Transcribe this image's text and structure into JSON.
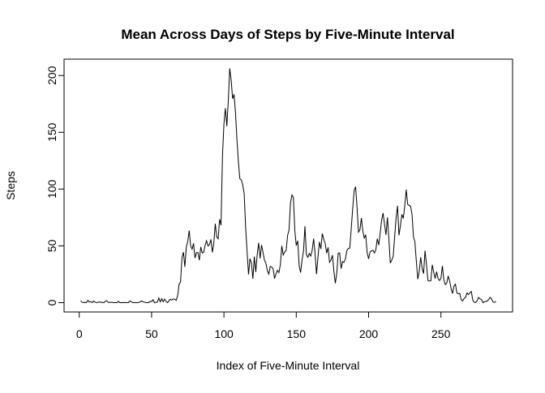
{
  "chart_data": {
    "type": "line",
    "title": "Mean Across Days of Steps by Five-Minute Interval",
    "x_label": "Index of Five-Minute Interval",
    "y_label": "Steps",
    "x": [
      1,
      2,
      3,
      4,
      5,
      6,
      7,
      8,
      9,
      10,
      11,
      12,
      13,
      14,
      15,
      16,
      17,
      18,
      19,
      20,
      21,
      22,
      23,
      24,
      25,
      26,
      27,
      28,
      29,
      30,
      31,
      32,
      33,
      34,
      35,
      36,
      37,
      38,
      39,
      40,
      41,
      42,
      43,
      44,
      45,
      46,
      47,
      48,
      49,
      50,
      51,
      52,
      53,
      54,
      55,
      56,
      57,
      58,
      59,
      60,
      61,
      62,
      63,
      64,
      65,
      66,
      67,
      68,
      69,
      70,
      71,
      72,
      73,
      74,
      75,
      76,
      77,
      78,
      79,
      80,
      81,
      82,
      83,
      84,
      85,
      86,
      87,
      88,
      89,
      90,
      91,
      92,
      93,
      94,
      95,
      96,
      97,
      98,
      99,
      100,
      101,
      102,
      103,
      104,
      105,
      106,
      107,
      108,
      109,
      110,
      111,
      112,
      113,
      114,
      115,
      116,
      117,
      118,
      119,
      120,
      121,
      122,
      123,
      124,
      125,
      126,
      127,
      128,
      129,
      130,
      131,
      132,
      133,
      134,
      135,
      136,
      137,
      138,
      139,
      140,
      141,
      142,
      143,
      144,
      145,
      146,
      147,
      148,
      149,
      150,
      151,
      152,
      153,
      154,
      155,
      156,
      157,
      158,
      159,
      160,
      161,
      162,
      163,
      164,
      165,
      166,
      167,
      168,
      169,
      170,
      171,
      172,
      173,
      174,
      175,
      176,
      177,
      178,
      179,
      180,
      181,
      182,
      183,
      184,
      185,
      186,
      187,
      188,
      189,
      190,
      191,
      192,
      193,
      194,
      195,
      196,
      197,
      198,
      199,
      200,
      201,
      202,
      203,
      204,
      205,
      206,
      207,
      208,
      209,
      210,
      211,
      212,
      213,
      214,
      215,
      216,
      217,
      218,
      219,
      220,
      221,
      222,
      223,
      224,
      225,
      226,
      227,
      228,
      229,
      230,
      231,
      232,
      233,
      234,
      235,
      236,
      237,
      238,
      239,
      240,
      241,
      242,
      243,
      244,
      245,
      246,
      247,
      248,
      249,
      250,
      251,
      252,
      253,
      254,
      255,
      256,
      257,
      258,
      259,
      260,
      261,
      262,
      263,
      264,
      265,
      266,
      267,
      268,
      269,
      270,
      271,
      272,
      273,
      274,
      275,
      276,
      277,
      278,
      279,
      280,
      281,
      282,
      283,
      284,
      285,
      286,
      287,
      288
    ],
    "series": [
      {
        "color": "#000000",
        "values": [
          1.7,
          0.3,
          0.1,
          0.2,
          0.1,
          2.1,
          0.5,
          0.9,
          0,
          1.5,
          0.3,
          0.1,
          0.3,
          0.7,
          0.2,
          0.3,
          0,
          1.1,
          1.8,
          0.2,
          0.2,
          0.4,
          0.3,
          0,
          0,
          0,
          1.1,
          0,
          0,
          0.1,
          0,
          0.2,
          0,
          0,
          1.5,
          0.9,
          0,
          0,
          0,
          0,
          0.2,
          0.6,
          1.6,
          0.6,
          0.5,
          0.1,
          0,
          0,
          1.2,
          0.9,
          2.6,
          0,
          0.3,
          0.4,
          4.1,
          0.7,
          3.5,
          0.8,
          3.1,
          1.1,
          0,
          1.6,
          3,
          2.2,
          3.3,
          3,
          2.1,
          6.1,
          16,
          18.3,
          39.5,
          44.5,
          31.5,
          49.3,
          53.8,
          63.5,
          50,
          47.1,
          52.2,
          39.3,
          44,
          44.2,
          37.4,
          49,
          43.8,
          44.4,
          50.5,
          54.5,
          49.9,
          51,
          55.7,
          44.3,
          52.3,
          69.5,
          57.8,
          56.2,
          73.4,
          68.2,
          129.4,
          157.5,
          171.2,
          155.4,
          177.3,
          206.2,
          195.9,
          179.6,
          183.4,
          167,
          143.5,
          124,
          109.1,
          108.1,
          103.7,
          96,
          66.2,
          45.2,
          24.8,
          38.8,
          35,
          21.1,
          40.6,
          27,
          42.4,
          52.7,
          38.9,
          50.8,
          44.3,
          37.4,
          34.7,
          28.3,
          25.1,
          31.9,
          31.4,
          29.7,
          21.3,
          25.5,
          28.4,
          26.5,
          33.4,
          50,
          42,
          44.6,
          46,
          59.2,
          63.9,
          87.7,
          94.8,
          92.8,
          63.4,
          50.2,
          54.5,
          32.4,
          26.5,
          37.7,
          45.1,
          67.3,
          42.3,
          39.9,
          43.3,
          41,
          46.2,
          56.4,
          42.8,
          25.1,
          40,
          53.5,
          47.3,
          60.8,
          55.8,
          52,
          43.6,
          48.7,
          35.5,
          37.5,
          41.8,
          27.5,
          17.1,
          26.1,
          43.6,
          43.8,
          30,
          36.1,
          35.5,
          38.8,
          46,
          47.8,
          48.1,
          65.3,
          82.9,
          98.7,
          102.1,
          84,
          62.1,
          64.1,
          74.5,
          63.2,
          56.9,
          59.8,
          43.9,
          38.6,
          44.7,
          45.5,
          46.2,
          43.7,
          46.6,
          56.3,
          50.7,
          61.2,
          72.7,
          78.9,
          68.9,
          59.7,
          75.1,
          56.5,
          34.8,
          37.5,
          40.7,
          58,
          74.7,
          85.3,
          59.3,
          67.8,
          77.7,
          74.2,
          85.3,
          99.5,
          86.6,
          85.6,
          84.9,
          77.8,
          58,
          53.4,
          36.3,
          20.7,
          27.4,
          40,
          30.2,
          25.5,
          45.7,
          33.5,
          19.6,
          19,
          19.3,
          33.3,
          26.8,
          21.2,
          27.3,
          21.3,
          19.5,
          21.3,
          32.3,
          20.2,
          15.9,
          17.2,
          23.5,
          19.2,
          12.5,
          8,
          14.7,
          16.3,
          8.7,
          7.8,
          8.1,
          2.6,
          1.5,
          3.7,
          4.8,
          8.5,
          7.1,
          8.7,
          9.8,
          2.2,
          0.3,
          0.1,
          1.6,
          4.6,
          3.3,
          2.8,
          0,
          0.8,
          1,
          1.6,
          2.6,
          4.7,
          3.3,
          0.6,
          0.2,
          1.1
        ]
      }
    ],
    "xlim": [
      -10.5,
      299.5
    ],
    "xticks": [
      0,
      50,
      100,
      150,
      200,
      250
    ],
    "ylim": [
      -8.2,
      214.4
    ],
    "yticks": [
      0,
      50,
      100,
      150,
      200
    ]
  }
}
